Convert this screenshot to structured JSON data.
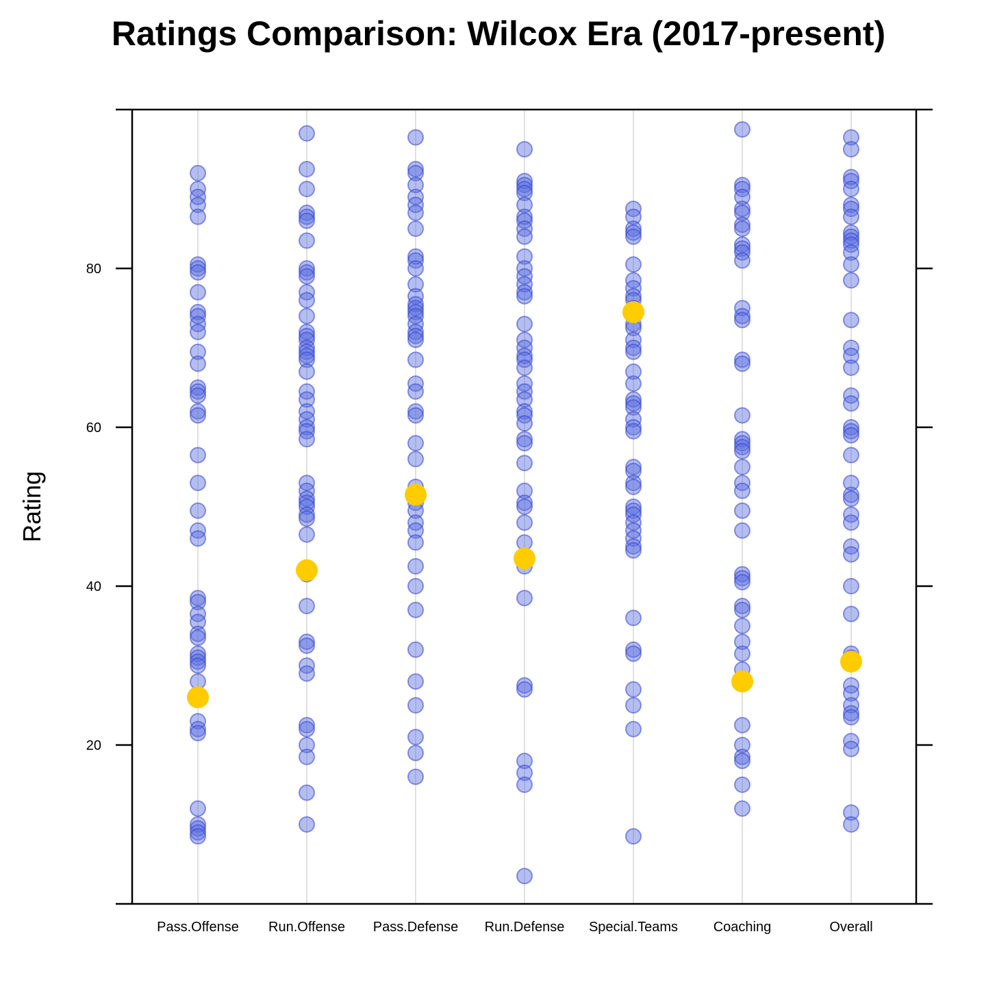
{
  "chart_data": {
    "type": "scatter",
    "title": "Ratings Comparison: Wilcox Era (2017-present)",
    "xlabel": "",
    "ylabel": "Rating",
    "ylim": [
      0,
      100
    ],
    "yticks": [
      20,
      40,
      60,
      80
    ],
    "grid": "vertical lines at each category",
    "colors": {
      "points_fill": "#5a6ee0",
      "points_stroke": "#3344cc",
      "highlight": "#ffcc00",
      "grid": "#e0e0e0",
      "axis": "#000000"
    },
    "categories": [
      "Pass.Offense",
      "Run.Offense",
      "Pass.Defense",
      "Run.Defense",
      "Special.Teams",
      "Coaching",
      "Overall"
    ],
    "series": [
      {
        "values": [
          [
            92,
            90,
            89,
            88,
            86.5,
            80.5,
            80,
            79.5,
            77,
            74.5,
            74,
            73,
            72,
            69.5,
            68,
            65,
            64.5,
            64,
            62,
            61.5,
            56.5,
            53,
            49.5,
            47,
            46,
            38.5,
            38,
            36.5,
            35.5,
            34,
            33.5,
            31.5,
            31,
            30.5,
            30,
            28,
            23,
            22,
            21.5,
            12,
            10,
            9.5,
            9,
            8.5
          ],
          [
            97,
            92.5,
            90,
            87,
            86.5,
            86,
            83.5,
            80,
            79.5,
            79,
            77,
            76,
            74,
            72,
            71.5,
            71,
            70,
            69.5,
            69,
            68.5,
            67,
            64.5,
            63.5,
            62,
            61,
            60,
            59.5,
            58.5,
            53,
            52,
            51,
            50.5,
            50,
            49,
            48.5,
            46.5,
            41.5,
            37.5,
            33,
            32.5,
            30,
            29,
            22.5,
            22,
            20,
            18.5,
            14,
            10
          ],
          [
            96.5,
            92.5,
            92,
            90.5,
            89,
            88,
            87,
            85,
            81.5,
            81,
            80,
            78,
            76.5,
            75.5,
            75,
            74.5,
            74,
            73,
            72,
            71.5,
            71,
            68.5,
            65.5,
            64.5,
            62,
            61.5,
            58,
            56,
            52.5,
            50.5,
            49.5,
            48,
            47,
            45.5,
            42.5,
            40,
            37,
            32,
            28,
            25,
            21,
            19,
            16
          ],
          [
            95,
            91,
            90.5,
            90,
            89.5,
            88,
            86.5,
            86,
            85,
            84,
            81.5,
            80,
            79,
            78,
            77,
            76.5,
            73,
            71,
            70,
            69,
            68.5,
            67.5,
            65.5,
            64.5,
            63.5,
            62,
            61.5,
            60.5,
            58.5,
            58,
            55.5,
            52,
            50.5,
            50,
            48,
            45.5,
            42.5,
            38.5,
            27.5,
            27,
            18,
            16.5,
            15,
            3.5
          ],
          [
            87.5,
            86.5,
            85,
            84.5,
            84,
            80.5,
            78.5,
            77.5,
            76.5,
            76,
            75,
            73,
            72.5,
            71,
            70,
            69.5,
            67,
            65.5,
            63.5,
            63,
            62.5,
            61,
            60,
            59.5,
            55,
            54.5,
            53,
            52.5,
            50,
            49.5,
            49,
            48,
            47,
            46,
            45,
            44.5,
            36,
            32,
            31.5,
            27,
            25,
            22,
            8.5
          ],
          [
            97.5,
            90.5,
            90,
            89,
            87.5,
            87,
            85.5,
            85,
            83,
            82.5,
            82,
            81,
            75,
            74,
            73.5,
            68.5,
            68,
            61.5,
            58.5,
            58,
            57.5,
            57,
            55,
            53,
            52,
            49.5,
            47,
            41.5,
            41,
            40.5,
            37.5,
            37,
            35,
            33,
            31.5,
            29.5,
            22.5,
            20,
            18.5,
            18,
            15,
            12
          ],
          [
            96.5,
            95,
            91.5,
            91,
            90,
            88,
            87.5,
            86.5,
            84.5,
            84,
            83.5,
            83,
            82,
            80.5,
            78.5,
            73.5,
            70,
            69,
            67.5,
            64,
            63,
            60,
            59.5,
            59,
            56.5,
            53,
            51.5,
            51,
            49,
            48,
            45,
            44,
            40,
            36.5,
            31.5,
            31,
            27.5,
            26.5,
            25,
            24,
            23.5,
            20.5,
            19.5,
            11.5,
            10
          ]
        ]
      },
      {
        "values": [
          26,
          42,
          51.5,
          43.5,
          74.5,
          28,
          30.5
        ]
      }
    ]
  }
}
